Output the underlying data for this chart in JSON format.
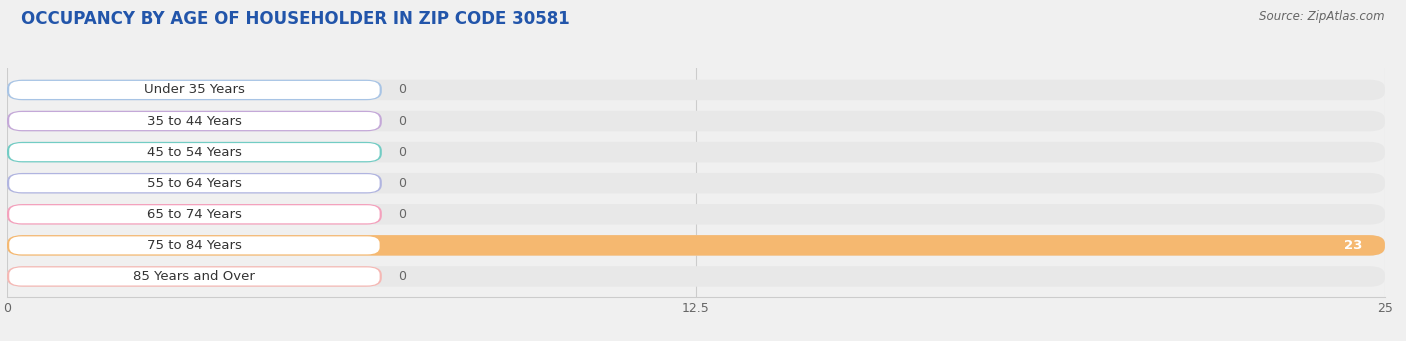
{
  "title": "OCCUPANCY BY AGE OF HOUSEHOLDER IN ZIP CODE 30581",
  "source": "Source: ZipAtlas.com",
  "categories": [
    "Under 35 Years",
    "35 to 44 Years",
    "45 to 54 Years",
    "55 to 64 Years",
    "65 to 74 Years",
    "75 to 84 Years",
    "85 Years and Over"
  ],
  "values": [
    0,
    0,
    0,
    0,
    0,
    23,
    0
  ],
  "bar_colors": [
    "#a8c4e5",
    "#c4a8d8",
    "#72ccc4",
    "#b0b4e0",
    "#f4a0bc",
    "#f5b870",
    "#f5b8b4"
  ],
  "bar_color_light": [
    "#c8d8f0",
    "#d8c8e8",
    "#a8dcd8",
    "#ccd0ec",
    "#f8c8d8",
    "#f8d090",
    "#f8d0cc"
  ],
  "xlim": [
    0,
    25
  ],
  "xticks": [
    0,
    12.5,
    25
  ],
  "fig_bg": "#f0f0f0",
  "title_fontsize": 12,
  "source_fontsize": 8.5
}
